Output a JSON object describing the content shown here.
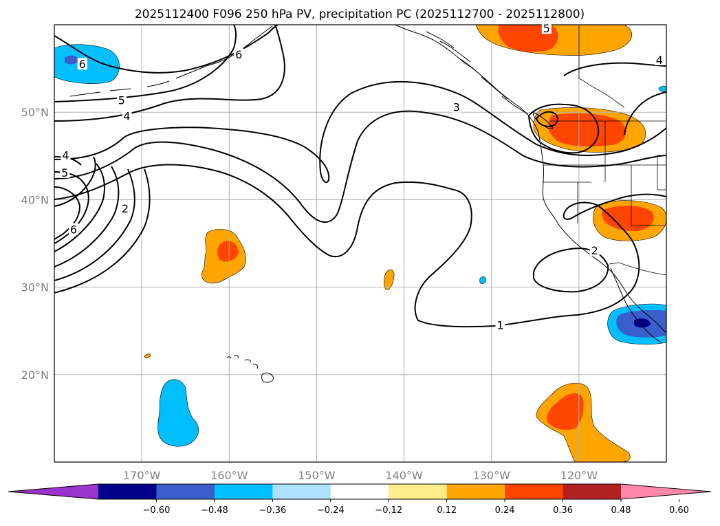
{
  "chart_data": {
    "type": "map-contour",
    "title": "2025112400 F096 250 hPa PV, precipitation PC (2025112700 - 2025112800)",
    "projection": "PlateCarree",
    "lon_range": [
      -180,
      -110
    ],
    "lat_range": [
      10,
      60
    ],
    "lat_ticks": [
      {
        "value": 50,
        "label": "50°N"
      },
      {
        "value": 40,
        "label": "40°N"
      },
      {
        "value": 30,
        "label": "30°N"
      },
      {
        "value": 20,
        "label": "20°N"
      }
    ],
    "lon_ticks": [
      {
        "value": -170,
        "label": "170°W"
      },
      {
        "value": -160,
        "label": "160°W"
      },
      {
        "value": -150,
        "label": "150°W"
      },
      {
        "value": -140,
        "label": "140°W"
      },
      {
        "value": -130,
        "label": "130°W"
      },
      {
        "value": -120,
        "label": "120°W"
      }
    ],
    "colorbar": {
      "levels": [
        -0.72,
        -0.6,
        -0.48,
        -0.36,
        -0.24,
        -0.12,
        0.12,
        0.24,
        0.36,
        0.48,
        0.6,
        0.72
      ],
      "colors": [
        "#9933cc",
        "#00008b",
        "#3a5fcd",
        "#00bfff",
        "#ade1ff",
        "#ffffff",
        "#ffec8b",
        "#ffa500",
        "#ff4500",
        "#b22222",
        "#ff88aa"
      ],
      "tick_labels": [
        "−0.60",
        "−0.48",
        "−0.36",
        "−0.24",
        "−0.12",
        "0.12",
        "0.24",
        "0.36",
        "0.48",
        "0.60"
      ],
      "extend": "both"
    },
    "pv_contour_labels": [
      {
        "text": "6",
        "lon": -176.8,
        "lat": 55.5
      },
      {
        "text": "6",
        "lon": -158.9,
        "lat": 56.6
      },
      {
        "text": "5",
        "lon": -172.3,
        "lat": 51.4
      },
      {
        "text": "4",
        "lon": -171.7,
        "lat": 49.6
      },
      {
        "text": "4",
        "lon": -178.7,
        "lat": 45.1
      },
      {
        "text": "5",
        "lon": -178.8,
        "lat": 43.1
      },
      {
        "text": "6",
        "lon": -177.8,
        "lat": 36.6
      },
      {
        "text": "2",
        "lon": -171.9,
        "lat": 39.0
      },
      {
        "text": "3",
        "lon": -134.0,
        "lat": 50.6
      },
      {
        "text": "5",
        "lon": -123.7,
        "lat": 59.6
      },
      {
        "text": "4",
        "lon": -110.8,
        "lat": 56.0
      },
      {
        "text": "2",
        "lon": -118.2,
        "lat": 34.2
      },
      {
        "text": "1",
        "lon": -129.0,
        "lat": 25.7
      }
    ],
    "precip_anomalies": [
      {
        "sign": "negative",
        "level": "-0.36 to -0.24",
        "approx_center": {
          "lon": -177.5,
          "lat": 56
        }
      },
      {
        "sign": "positive",
        "level": "0.36",
        "approx_center": {
          "lon": -159.8,
          "lat": 34.5
        }
      },
      {
        "sign": "positive",
        "level": "0.24",
        "approx_center": {
          "lon": -141.8,
          "lat": 30.8
        }
      },
      {
        "sign": "negative",
        "level": "-0.24",
        "approx_center": {
          "lon": -130.8,
          "lat": 30.7
        }
      },
      {
        "sign": "negative",
        "level": "-0.36",
        "approx_center": {
          "lon": -166.0,
          "lat": 14.2
        }
      },
      {
        "sign": "positive",
        "level": "0.36",
        "approx_center": {
          "lon": -126.0,
          "lat": 59.0
        }
      },
      {
        "sign": "positive",
        "level": "0.36",
        "approx_center": {
          "lon": -118.3,
          "lat": 48.2
        }
      },
      {
        "sign": "positive",
        "level": "0.36",
        "approx_center": {
          "lon": -116.0,
          "lat": 38.0
        }
      },
      {
        "sign": "negative",
        "level": "-0.48",
        "approx_center": {
          "lon": -112.5,
          "lat": 25.5
        }
      },
      {
        "sign": "positive",
        "level": "0.36",
        "approx_center": {
          "lon": -120.5,
          "lat": 15.0
        }
      }
    ]
  }
}
